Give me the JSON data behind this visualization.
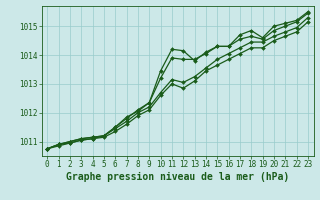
{
  "title": "Graphe pression niveau de la mer (hPa)",
  "bg_color": "#cce8e8",
  "plot_bg_color": "#cce8e8",
  "line_color": "#1a5c1a",
  "grid_color": "#99cccc",
  "text_color": "#1a5c1a",
  "xlim": [
    -0.5,
    23.5
  ],
  "ylim": [
    1010.5,
    1015.7
  ],
  "yticks": [
    1011,
    1012,
    1013,
    1014,
    1015
  ],
  "xticks": [
    0,
    1,
    2,
    3,
    4,
    5,
    6,
    7,
    8,
    9,
    10,
    11,
    12,
    13,
    14,
    15,
    16,
    17,
    18,
    19,
    20,
    21,
    22,
    23
  ],
  "series": [
    [
      1010.75,
      1010.9,
      1010.95,
      1011.05,
      1011.1,
      1011.15,
      1011.35,
      1011.6,
      1011.9,
      1012.1,
      1012.6,
      1013.0,
      1012.85,
      1013.1,
      1013.45,
      1013.65,
      1013.85,
      1014.05,
      1014.25,
      1014.25,
      1014.5,
      1014.65,
      1014.8,
      1015.15
    ],
    [
      1010.75,
      1010.9,
      1011.0,
      1011.1,
      1011.15,
      1011.2,
      1011.45,
      1011.7,
      1012.0,
      1012.2,
      1012.7,
      1013.15,
      1013.05,
      1013.25,
      1013.55,
      1013.85,
      1014.05,
      1014.25,
      1014.45,
      1014.45,
      1014.65,
      1014.8,
      1014.95,
      1015.3
    ],
    [
      1010.75,
      1010.9,
      1011.0,
      1011.1,
      1011.15,
      1011.2,
      1011.5,
      1011.8,
      1012.1,
      1012.35,
      1013.2,
      1013.9,
      1013.85,
      1013.85,
      1014.05,
      1014.3,
      1014.3,
      1014.55,
      1014.65,
      1014.55,
      1014.85,
      1015.0,
      1015.15,
      1015.45
    ],
    [
      1010.75,
      1010.85,
      1010.95,
      1011.05,
      1011.1,
      1011.2,
      1011.5,
      1011.85,
      1012.05,
      1012.35,
      1013.45,
      1014.2,
      1014.15,
      1013.8,
      1014.1,
      1014.3,
      1014.3,
      1014.7,
      1014.85,
      1014.6,
      1015.0,
      1015.1,
      1015.2,
      1015.5
    ]
  ],
  "marker": "D",
  "markersize": 2.0,
  "linewidth": 0.9,
  "title_fontsize": 7,
  "tick_fontsize": 5.5
}
